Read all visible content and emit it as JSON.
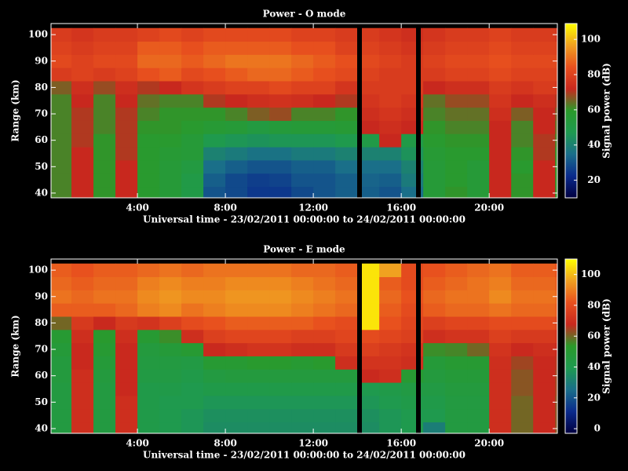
{
  "chart_data": [
    {
      "type": "heatmap",
      "title": "Power - O mode",
      "xlabel": "Universal time - 23/02/2011 00:00:00 to 24/02/2011 00:00:00",
      "ylabel": "Range (km)",
      "x": [
        0.5,
        1.5,
        2.5,
        3.5,
        4.5,
        5.5,
        6.5,
        7.5,
        8.5,
        9.5,
        10.5,
        11.5,
        12.5,
        13.5,
        14.5,
        15.5,
        16.5,
        17.5,
        18.5,
        19.5,
        20.5,
        21.5,
        22.5,
        23.5
      ],
      "y": [
        40,
        45,
        50,
        55,
        60,
        65,
        70,
        75,
        80,
        85,
        90,
        95,
        100
      ],
      "values": [
        [
          62,
          72,
          60,
          72,
          58,
          55,
          50,
          30,
          28,
          25,
          25,
          28,
          30,
          32,
          32,
          30,
          35,
          55,
          60,
          55,
          72,
          60,
          72,
          60
        ],
        [
          62,
          72,
          60,
          72,
          58,
          55,
          50,
          32,
          28,
          26,
          27,
          30,
          30,
          32,
          33,
          32,
          38,
          55,
          58,
          55,
          72,
          60,
          72,
          60
        ],
        [
          62,
          72,
          60,
          72,
          58,
          55,
          52,
          35,
          32,
          30,
          30,
          32,
          32,
          35,
          35,
          35,
          40,
          55,
          58,
          55,
          72,
          58,
          72,
          60
        ],
        [
          62,
          72,
          60,
          70,
          58,
          56,
          55,
          40,
          38,
          36,
          36,
          38,
          38,
          40,
          40,
          40,
          45,
          56,
          58,
          58,
          72,
          60,
          70,
          60
        ],
        [
          62,
          70,
          60,
          70,
          58,
          58,
          55,
          48,
          46,
          45,
          46,
          46,
          46,
          48,
          50,
          72,
          50,
          58,
          60,
          60,
          72,
          62,
          70,
          62
        ],
        [
          62,
          70,
          62,
          70,
          60,
          60,
          58,
          56,
          55,
          52,
          54,
          55,
          55,
          56,
          72,
          74,
          72,
          60,
          62,
          62,
          72,
          62,
          72,
          64
        ],
        [
          62,
          70,
          62,
          70,
          62,
          60,
          60,
          60,
          62,
          66,
          68,
          62,
          62,
          60,
          74,
          76,
          74,
          62,
          64,
          64,
          74,
          66,
          72,
          66
        ],
        [
          62,
          72,
          62,
          72,
          64,
          62,
          62,
          70,
          72,
          74,
          75,
          74,
          72,
          70,
          76,
          78,
          76,
          64,
          68,
          68,
          76,
          72,
          74,
          70
        ],
        [
          66,
          74,
          68,
          74,
          70,
          72,
          76,
          78,
          80,
          80,
          82,
          80,
          80,
          76,
          78,
          78,
          78,
          72,
          74,
          74,
          78,
          76,
          78,
          76
        ],
        [
          78,
          80,
          78,
          80,
          84,
          86,
          82,
          84,
          86,
          88,
          88,
          86,
          84,
          82,
          80,
          78,
          78,
          78,
          80,
          80,
          82,
          80,
          80,
          80
        ],
        [
          82,
          80,
          82,
          82,
          88,
          88,
          86,
          88,
          90,
          90,
          90,
          88,
          86,
          84,
          82,
          80,
          78,
          80,
          82,
          82,
          84,
          82,
          82,
          82
        ],
        [
          80,
          78,
          80,
          80,
          86,
          86,
          84,
          86,
          86,
          86,
          86,
          84,
          84,
          80,
          80,
          78,
          76,
          78,
          80,
          80,
          82,
          80,
          80,
          80
        ],
        [
          78,
          76,
          78,
          78,
          80,
          82,
          80,
          82,
          82,
          82,
          82,
          80,
          80,
          78,
          78,
          76,
          74,
          76,
          78,
          78,
          80,
          78,
          78,
          76
        ]
      ],
      "xlim": [
        0.07,
        23.1
      ],
      "ylim": [
        38.2,
        104.2
      ],
      "xticks": [
        {
          "value": 4,
          "label": "4:00"
        },
        {
          "value": 8,
          "label": "8:00"
        },
        {
          "value": 12,
          "label": "12:00"
        },
        {
          "value": 16,
          "label": "16:00"
        },
        {
          "value": 20,
          "label": "20:00"
        }
      ],
      "yticks": [
        40,
        50,
        60,
        70,
        80,
        90,
        100
      ],
      "colorbar": {
        "label": "Signal power (dB)",
        "zlim": [
          10,
          109
        ],
        "ticks": [
          20,
          40,
          60,
          80,
          100
        ],
        "colormap": [
          "#000040",
          "#0a2a8c",
          "#1a6e8a",
          "#1e9a50",
          "#2a9a2a",
          "#c8281e",
          "#e8501e",
          "#f0a020",
          "#ffff00"
        ]
      }
    },
    {
      "type": "heatmap",
      "title": "Power - E mode",
      "xlabel": "Universal time - 23/02/2011 00:00:00 to 24/02/2011 00:00:00",
      "ylabel": "Range (km)",
      "x": [
        0.5,
        1.5,
        2.5,
        3.5,
        4.5,
        5.5,
        6.5,
        7.5,
        8.5,
        9.5,
        10.5,
        11.5,
        12.5,
        13.5,
        14.5,
        15.5,
        16.5,
        17.5,
        18.5,
        19.5,
        20.5,
        21.5,
        22.5,
        23.5
      ],
      "y": [
        40,
        45,
        50,
        55,
        60,
        65,
        70,
        75,
        80,
        85,
        90,
        95,
        100
      ],
      "values": [
        [
          45,
          70,
          45,
          70,
          42,
          40,
          38,
          35,
          35,
          35,
          35,
          35,
          35,
          35,
          35,
          38,
          40,
          30,
          45,
          45,
          70,
          60,
          68,
          62
        ],
        [
          45,
          70,
          45,
          70,
          42,
          40,
          38,
          36,
          36,
          36,
          36,
          36,
          36,
          36,
          36,
          38,
          40,
          40,
          45,
          45,
          70,
          60,
          68,
          62
        ],
        [
          45,
          70,
          45,
          70,
          42,
          40,
          40,
          38,
          38,
          38,
          38,
          38,
          38,
          38,
          38,
          40,
          42,
          42,
          45,
          45,
          70,
          60,
          68,
          62
        ],
        [
          45,
          70,
          45,
          68,
          42,
          42,
          40,
          42,
          42,
          42,
          42,
          42,
          42,
          42,
          40,
          42,
          44,
          44,
          46,
          46,
          70,
          62,
          68,
          64
        ],
        [
          46,
          70,
          46,
          68,
          44,
          44,
          42,
          45,
          46,
          46,
          46,
          46,
          46,
          46,
          68,
          70,
          50,
          46,
          48,
          48,
          70,
          62,
          68,
          64
        ],
        [
          46,
          68,
          48,
          68,
          45,
          45,
          44,
          50,
          50,
          52,
          52,
          50,
          52,
          70,
          72,
          72,
          70,
          48,
          50,
          50,
          70,
          64,
          68,
          66
        ],
        [
          48,
          68,
          50,
          68,
          46,
          48,
          50,
          68,
          70,
          72,
          72,
          70,
          70,
          74,
          76,
          74,
          72,
          55,
          56,
          60,
          72,
          68,
          70,
          68
        ],
        [
          50,
          70,
          52,
          70,
          50,
          55,
          70,
          76,
          78,
          78,
          78,
          76,
          76,
          78,
          80,
          78,
          76,
          70,
          72,
          72,
          76,
          74,
          74,
          72
        ],
        [
          60,
          74,
          68,
          74,
          72,
          76,
          80,
          82,
          84,
          84,
          84,
          84,
          82,
          80,
          106,
          82,
          78,
          76,
          78,
          78,
          80,
          80,
          80,
          78
        ],
        [
          84,
          84,
          84,
          86,
          90,
          92,
          88,
          90,
          92,
          92,
          92,
          90,
          88,
          86,
          106,
          84,
          80,
          84,
          86,
          86,
          88,
          86,
          86,
          84
        ],
        [
          88,
          86,
          88,
          88,
          92,
          94,
          92,
          92,
          94,
          94,
          94,
          92,
          90,
          88,
          106,
          86,
          82,
          86,
          88,
          88,
          92,
          88,
          88,
          86
        ],
        [
          86,
          84,
          86,
          86,
          90,
          92,
          90,
          90,
          92,
          92,
          92,
          90,
          88,
          86,
          106,
          84,
          80,
          84,
          86,
          88,
          90,
          86,
          86,
          84
        ],
        [
          84,
          82,
          84,
          84,
          86,
          88,
          86,
          88,
          88,
          88,
          88,
          86,
          86,
          84,
          106,
          96,
          80,
          82,
          84,
          86,
          88,
          84,
          84,
          82
        ]
      ],
      "xlim": [
        0.07,
        23.1
      ],
      "ylim": [
        38.2,
        104.2
      ],
      "xticks": [
        {
          "value": 4,
          "label": "4:00"
        },
        {
          "value": 8,
          "label": "8:00"
        },
        {
          "value": 12,
          "label": "12:00"
        },
        {
          "value": 16,
          "label": "16:00"
        },
        {
          "value": 20,
          "label": "20:00"
        }
      ],
      "yticks": [
        40,
        50,
        60,
        70,
        80,
        90,
        100
      ],
      "colorbar": {
        "label": "Signal power (dB)",
        "zlim": [
          -3,
          110
        ],
        "ticks": [
          0,
          20,
          40,
          60,
          80,
          100
        ],
        "colormap": [
          "#000040",
          "#0a2a8c",
          "#1a6e8a",
          "#1e9a50",
          "#2a9a2a",
          "#c8281e",
          "#e8501e",
          "#f0a020",
          "#ffff00"
        ]
      }
    }
  ]
}
